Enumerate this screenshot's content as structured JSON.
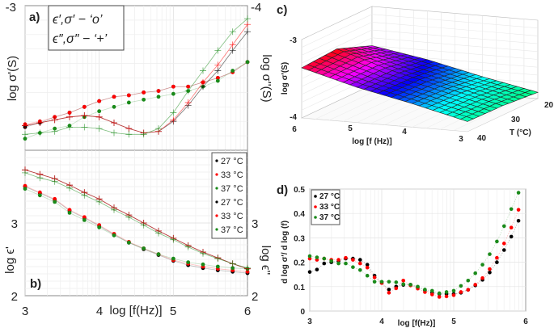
{
  "chart_data": [
    {
      "panel": "a)",
      "type": "scatter",
      "legend_text": [
        "ϵ′,σ′ − ‘o’",
        "ϵ″,σ″ − ‘+’"
      ],
      "ylabel": "log σ'(S)",
      "ylabel_right": "log σ''(S)",
      "ytick_left_top": "-3",
      "ytick_right_top": "-4",
      "xlim": [
        3,
        6
      ],
      "ylim_left": [
        -4,
        -3
      ],
      "ylim_right": [
        -5,
        -4
      ],
      "grid": true,
      "x": [
        3.0,
        3.2,
        3.4,
        3.6,
        3.8,
        4.0,
        4.2,
        4.4,
        4.6,
        4.8,
        5.0,
        5.2,
        5.4,
        5.6,
        5.8,
        6.0
      ],
      "series": [
        {
          "name": "27 °C",
          "quantity": "σ'",
          "marker": "o",
          "axis": "left",
          "color": "#000000",
          "values": [
            -3.84,
            -3.81,
            -3.77,
            -3.74,
            -3.7,
            -3.66,
            -3.63,
            -3.62,
            -3.6,
            -3.59,
            -3.56,
            -3.56,
            -3.53,
            -3.5,
            -3.46,
            -3.39
          ]
        },
        {
          "name": "33 °C",
          "quantity": "σ'",
          "marker": "o",
          "axis": "left",
          "color": "#ff0000",
          "values": [
            -3.82,
            -3.8,
            -3.77,
            -3.74,
            -3.7,
            -3.66,
            -3.63,
            -3.62,
            -3.6,
            -3.59,
            -3.56,
            -3.56,
            -3.53,
            -3.5,
            -3.46,
            -3.39
          ]
        },
        {
          "name": "37 °C",
          "quantity": "σ'",
          "marker": "o",
          "axis": "left",
          "color": "#1a8a1a",
          "values": [
            -3.92,
            -3.88,
            -3.85,
            -3.83,
            -3.77,
            -3.73,
            -3.7,
            -3.67,
            -3.65,
            -3.63,
            -3.61,
            -3.59,
            -3.56,
            -3.52,
            -3.45,
            -3.39
          ]
        },
        {
          "name": "27 °C",
          "quantity": "σ''",
          "marker": "+",
          "axis": "right",
          "color": "#000000",
          "values": [
            -4.83,
            -4.81,
            -4.79,
            -4.77,
            -4.76,
            -4.77,
            -4.81,
            -4.85,
            -4.88,
            -4.87,
            -4.8,
            -4.69,
            -4.56,
            -4.45,
            -4.31,
            -4.18
          ]
        },
        {
          "name": "33 °C",
          "quantity": "σ''",
          "marker": "+",
          "axis": "right",
          "color": "#ff0000",
          "values": [
            -4.83,
            -4.81,
            -4.79,
            -4.77,
            -4.76,
            -4.77,
            -4.81,
            -4.85,
            -4.88,
            -4.87,
            -4.79,
            -4.67,
            -4.53,
            -4.41,
            -4.27,
            -4.13
          ]
        },
        {
          "name": "37 °C",
          "quantity": "σ''",
          "marker": "+",
          "axis": "right",
          "color": "#1a8a1a",
          "values": [
            -4.89,
            -4.88,
            -4.87,
            -4.84,
            -4.84,
            -4.85,
            -4.88,
            -4.89,
            -4.89,
            -4.85,
            -4.74,
            -4.59,
            -4.45,
            -4.31,
            -4.18,
            -4.09
          ]
        }
      ]
    },
    {
      "panel": "b)",
      "type": "scatter",
      "ylabel": "log ϵ'",
      "ylabel_right": "log ϵ''",
      "xlabel": "log [f(Hz)]",
      "xticks": [
        "3",
        "4",
        "5",
        "6"
      ],
      "yticks_left": [
        "2",
        "3"
      ],
      "yticks_right": [
        "2",
        "3"
      ],
      "xlim": [
        3,
        6
      ],
      "ylim": [
        2,
        4
      ],
      "grid": true,
      "legend": [
        "27 °C",
        "33 °C",
        "37 °C",
        "27 °C",
        "33 °C",
        "37 °C"
      ],
      "legend_placement": "top-right",
      "x": [
        3.0,
        3.2,
        3.4,
        3.6,
        3.8,
        4.0,
        4.2,
        4.4,
        4.6,
        4.8,
        5.0,
        5.2,
        5.4,
        5.6,
        5.8,
        6.0
      ],
      "series": [
        {
          "name": "27 °C",
          "quantity": "ϵ'",
          "marker": "o",
          "color": "#000000",
          "values": [
            3.5,
            3.41,
            3.32,
            3.17,
            3.07,
            2.96,
            2.84,
            2.73,
            2.64,
            2.56,
            2.48,
            2.42,
            2.38,
            2.35,
            2.33,
            2.31
          ]
        },
        {
          "name": "33 °C",
          "quantity": "ϵ'",
          "marker": "o",
          "color": "#ff0000",
          "values": [
            3.51,
            3.42,
            3.33,
            3.18,
            3.08,
            2.97,
            2.85,
            2.74,
            2.65,
            2.57,
            2.49,
            2.44,
            2.4,
            2.37,
            2.35,
            2.33
          ]
        },
        {
          "name": "37 °C",
          "quantity": "ϵ'",
          "marker": "o",
          "color": "#1a8a1a",
          "values": [
            3.47,
            3.38,
            3.29,
            3.14,
            3.04,
            2.94,
            2.83,
            2.73,
            2.65,
            2.57,
            2.51,
            2.46,
            2.43,
            2.4,
            2.38,
            2.37
          ]
        },
        {
          "name": "27 °C",
          "quantity": "ϵ''",
          "marker": "+",
          "color": "#000000",
          "values": [
            3.73,
            3.67,
            3.61,
            3.52,
            3.42,
            3.33,
            3.21,
            3.11,
            3.0,
            2.89,
            2.79,
            2.69,
            2.6,
            2.52,
            2.44,
            2.37
          ]
        },
        {
          "name": "33 °C",
          "quantity": "ϵ''",
          "marker": "+",
          "color": "#ff0000",
          "values": [
            3.73,
            3.67,
            3.61,
            3.52,
            3.42,
            3.33,
            3.21,
            3.11,
            3.0,
            2.89,
            2.79,
            2.69,
            2.6,
            2.52,
            2.44,
            2.37
          ]
        },
        {
          "name": "37 °C",
          "quantity": "ϵ''",
          "marker": "+",
          "color": "#1a8a1a",
          "values": [
            3.69,
            3.62,
            3.57,
            3.48,
            3.38,
            3.29,
            3.18,
            3.08,
            2.97,
            2.86,
            2.77,
            2.67,
            2.58,
            2.51,
            2.44,
            2.38
          ]
        }
      ]
    },
    {
      "panel": "c)",
      "type": "surface",
      "xlabel": "log [f (Hz)]",
      "ylabel": "T (°C)",
      "zlabel": "log σ'(S)",
      "xticks": [
        "6",
        "5",
        "4",
        "3"
      ],
      "yticks": [
        "20",
        "30",
        "40"
      ],
      "zticks": [
        "-3",
        "-4"
      ],
      "xlim": [
        3,
        6
      ],
      "ylim": [
        20,
        40
      ],
      "zlim": [
        -4,
        -3
      ],
      "f": [
        6,
        5,
        4,
        3
      ],
      "T": [
        20,
        30,
        40
      ],
      "z": [
        [
          -3.5,
          -3.62,
          -3.78,
          -3.92
        ],
        [
          -3.33,
          -3.55,
          -3.72,
          -3.88
        ],
        [
          -3.36,
          -3.55,
          -3.7,
          -3.87
        ]
      ],
      "colormap": [
        "#00ff80",
        "#00ffff",
        "#0000ff",
        "#ff00ff",
        "#ff0000"
      ]
    },
    {
      "panel": "d)",
      "type": "scatter",
      "xlabel": "log [f(Hz)]",
      "ylabel": "d log σ'/ d log (f)",
      "xticks": [
        "3",
        "4",
        "5",
        "6"
      ],
      "yticks": [
        "0",
        "0.1",
        "0.2",
        "0.3",
        "0.4",
        "0.5"
      ],
      "xlim": [
        3,
        6
      ],
      "ylim": [
        0,
        0.5
      ],
      "grid": true,
      "legend_placement": "top-left",
      "x": [
        3.0,
        3.1,
        3.2,
        3.3,
        3.4,
        3.5,
        3.6,
        3.7,
        3.8,
        3.9,
        4.0,
        4.1,
        4.2,
        4.3,
        4.4,
        4.5,
        4.6,
        4.7,
        4.8,
        4.9,
        5.0,
        5.1,
        5.2,
        5.3,
        5.4,
        5.5,
        5.6,
        5.7,
        5.8,
        5.9
      ],
      "series": [
        {
          "name": "27 °C",
          "color": "#000000",
          "values": [
            0.16,
            0.17,
            0.195,
            0.2,
            0.205,
            0.215,
            0.215,
            0.21,
            0.19,
            0.145,
            0.115,
            0.088,
            0.1,
            0.107,
            0.108,
            0.098,
            0.085,
            0.075,
            0.07,
            0.07,
            0.07,
            0.075,
            0.087,
            0.105,
            0.128,
            0.158,
            0.2,
            0.25,
            0.305,
            0.37
          ]
        },
        {
          "name": "33 °C",
          "color": "#ff0000",
          "values": [
            0.215,
            0.21,
            0.215,
            0.21,
            0.21,
            0.218,
            0.21,
            0.195,
            0.178,
            0.138,
            0.115,
            0.075,
            0.093,
            0.125,
            0.105,
            0.092,
            0.078,
            0.068,
            0.058,
            0.06,
            0.065,
            0.078,
            0.087,
            0.108,
            0.135,
            0.172,
            0.218,
            0.277,
            0.342,
            0.415
          ]
        },
        {
          "name": "37 °C",
          "color": "#1a8a1a",
          "values": [
            0.225,
            0.22,
            0.215,
            0.205,
            0.195,
            0.195,
            0.18,
            0.168,
            0.145,
            0.12,
            0.12,
            0.12,
            0.118,
            0.11,
            0.108,
            0.1,
            0.088,
            0.083,
            0.073,
            0.078,
            0.083,
            0.103,
            0.125,
            0.155,
            0.19,
            0.233,
            0.285,
            0.348,
            0.418,
            0.485
          ]
        }
      ]
    }
  ]
}
